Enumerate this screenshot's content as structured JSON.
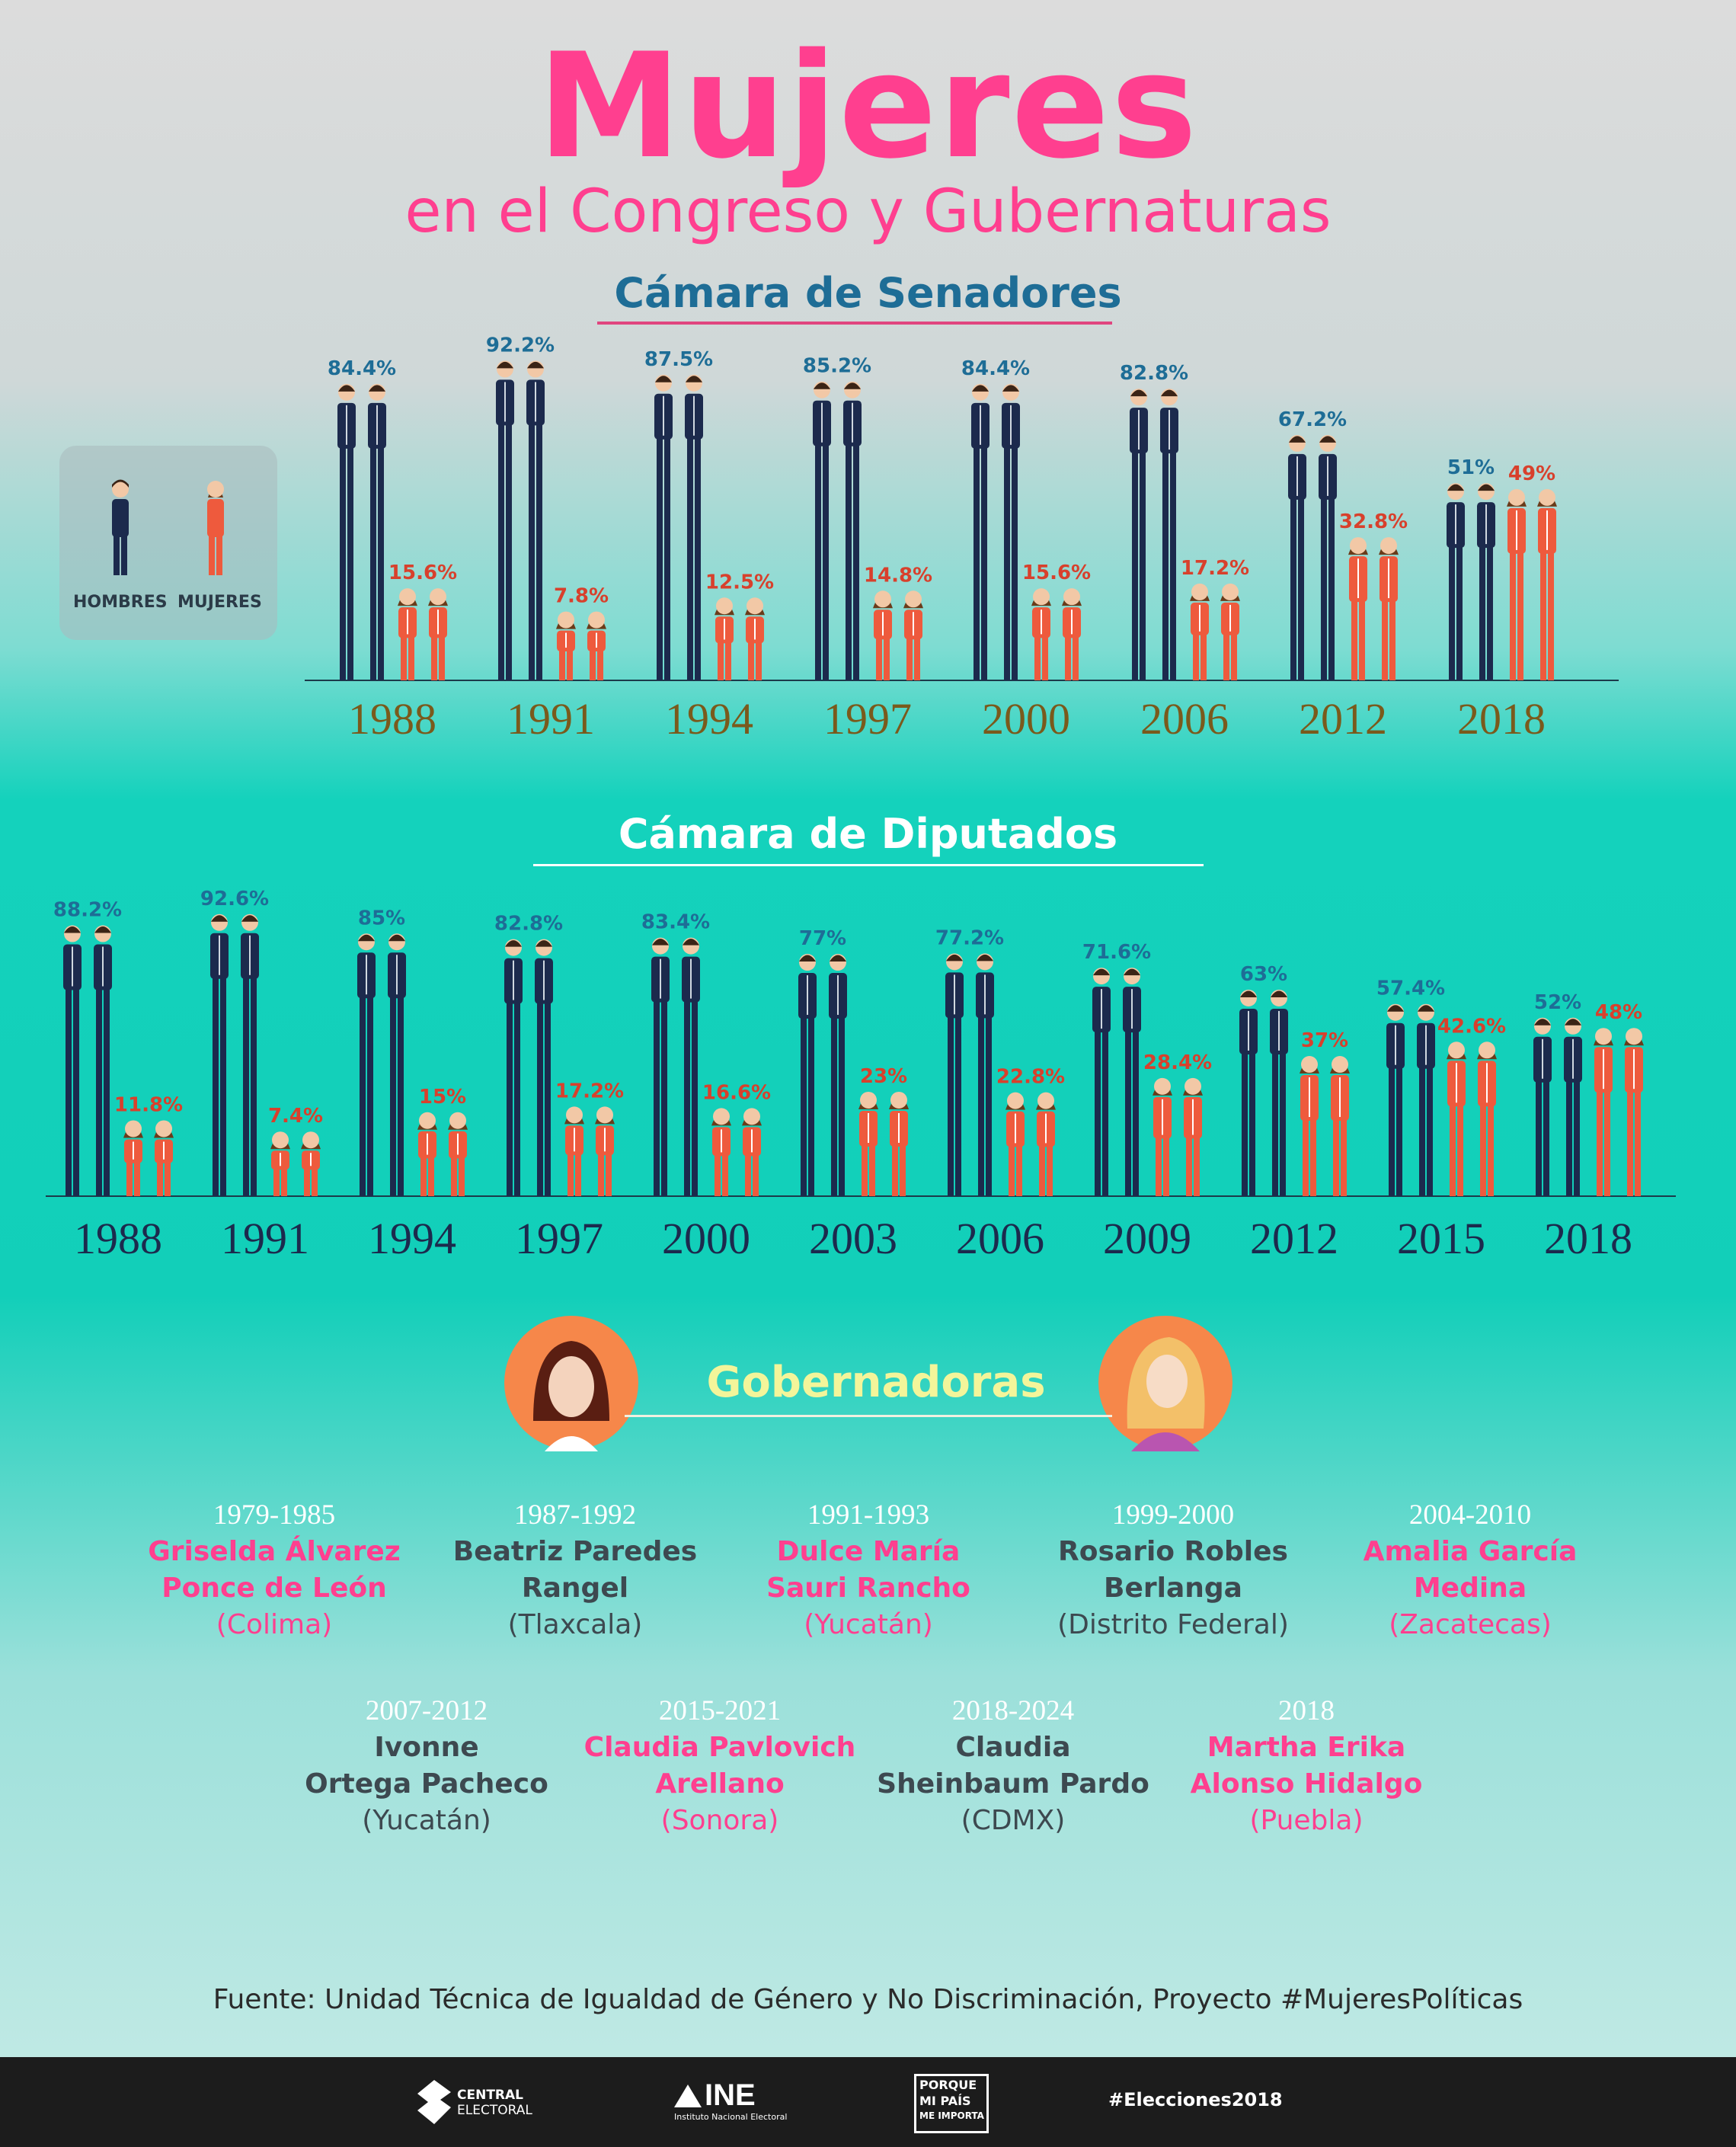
{
  "title": "Mujeres",
  "subtitle": "en el Congreso y Gubernaturas",
  "legend": {
    "men": "HOMBRES",
    "women": "MUJERES"
  },
  "colors": {
    "men": "#1c2a4d",
    "women": "#ee5a3d",
    "men_label": "#1e6d96",
    "women_label": "#d8402c",
    "sen_year": "#7a5a1c",
    "dip_year": "#1c2a4d"
  },
  "chart_data": [
    {
      "type": "bar",
      "title": "Cámara de Senadores",
      "categories": [
        "1988",
        "1991",
        "1994",
        "1997",
        "2000",
        "2006",
        "2012",
        "2018"
      ],
      "series": [
        {
          "name": "HOMBRES",
          "values": [
            84.4,
            92.2,
            87.5,
            85.2,
            84.4,
            82.8,
            67.2,
            51
          ],
          "labels": [
            "84.4%",
            "92.2%",
            "87.5%",
            "85.2%",
            "84.4%",
            "82.8%",
            "67.2%",
            "51%"
          ]
        },
        {
          "name": "MUJERES",
          "values": [
            15.6,
            7.8,
            12.5,
            14.8,
            15.6,
            17.2,
            32.8,
            49
          ],
          "labels": [
            "15.6%",
            "7.8%",
            "12.5%",
            "14.8%",
            "15.6%",
            "17.2%",
            "32.8%",
            "49%"
          ]
        }
      ],
      "ylim": [
        0,
        100
      ]
    },
    {
      "type": "bar",
      "title": "Cámara de Diputados",
      "categories": [
        "1988",
        "1991",
        "1994",
        "1997",
        "2000",
        "2003",
        "2006",
        "2009",
        "2012",
        "2015",
        "2018"
      ],
      "series": [
        {
          "name": "HOMBRES",
          "values": [
            88.2,
            92.6,
            85,
            82.8,
            83.4,
            77,
            77.2,
            71.6,
            63,
            57.4,
            52
          ],
          "labels": [
            "88.2%",
            "92.6%",
            "85%",
            "82.8%",
            "83.4%",
            "77%",
            "77.2%",
            "71.6%",
            "63%",
            "57.4%",
            "52%"
          ]
        },
        {
          "name": "MUJERES",
          "values": [
            11.8,
            7.4,
            15,
            17.2,
            16.6,
            23,
            22.8,
            28.4,
            37,
            42.6,
            48
          ],
          "labels": [
            "11.8%",
            "7.4%",
            "15%",
            "17.2%",
            "16.6%",
            "23%",
            "22.8%",
            "28.4%",
            "37%",
            "42.6%",
            "48%"
          ]
        }
      ],
      "ylim": [
        0,
        100
      ]
    }
  ],
  "gobernadoras": {
    "title": "Gobernadoras",
    "items": [
      {
        "years": "1979-1985",
        "name1": "Griselda Álvarez",
        "name2": "Ponce de León",
        "state": "(Colima)",
        "style": "pink"
      },
      {
        "years": "1987-1992",
        "name1": "Beatriz Paredes",
        "name2": "Rangel",
        "state": "(Tlaxcala)",
        "style": "dark"
      },
      {
        "years": "1991-1993",
        "name1": "Dulce María",
        "name2": "Sauri Rancho",
        "state": "(Yucatán)",
        "style": "pink"
      },
      {
        "years": "1999-2000",
        "name1": "Rosario Robles",
        "name2": "Berlanga",
        "state": "(Distrito Federal)",
        "style": "dark"
      },
      {
        "years": "2004-2010",
        "name1": "Amalia García",
        "name2": "Medina",
        "state": "(Zacatecas)",
        "style": "pink"
      },
      {
        "years": "2007-2012",
        "name1": "Ivonne",
        "name2": "Ortega Pacheco",
        "state": "(Yucatán)",
        "style": "dark"
      },
      {
        "years": "2015-2021",
        "name1": "Claudia Pavlovich",
        "name2": "Arellano",
        "state": "(Sonora)",
        "style": "pink"
      },
      {
        "years": "2018-2024",
        "name1": "Claudia",
        "name2": "Sheinbaum Pardo",
        "state": "(CDMX)",
        "style": "dark"
      },
      {
        "years": "2018",
        "name1": "Martha Erika",
        "name2": "Alonso Hidalgo",
        "state": "(Puebla)",
        "style": "pink"
      }
    ]
  },
  "source": "Fuente: Unidad Técnica de Igualdad de Género y No Discriminación, Proyecto #MujeresPolíticas",
  "footer": {
    "central_1": "CENTRAL",
    "central_2": "ELECTORAL",
    "ine": "INE",
    "ine_sub": "Instituto Nacional Electoral",
    "porque_1": "PORQUE",
    "porque_2": "MI PAÍS",
    "porque_3": "ME IMPORTA",
    "hashtag": "#Elecciones2018"
  }
}
